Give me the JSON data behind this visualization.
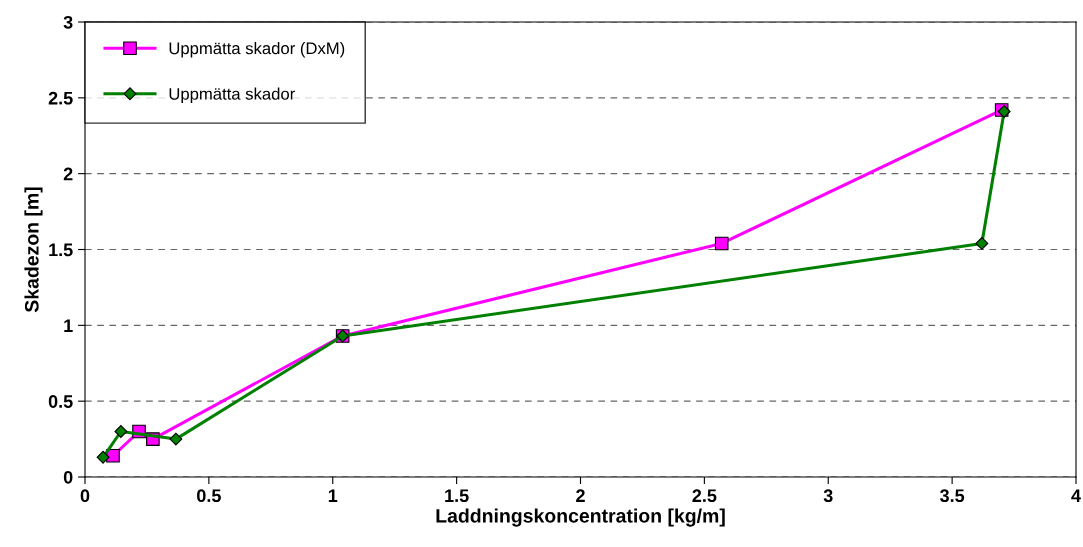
{
  "chart_data": {
    "type": "line",
    "xlabel": "Laddningskoncentration [kg/m]",
    "ylabel": "Skadezon [m]",
    "xlim": [
      0,
      4
    ],
    "xticks": [
      0,
      0.5,
      1,
      1.5,
      2,
      2.5,
      3,
      3.5,
      4
    ],
    "ylim": [
      0,
      3
    ],
    "yticks": [
      0,
      0.5,
      1,
      1.5,
      2,
      2.5,
      3
    ],
    "grid": "y",
    "legend": "top left",
    "line_style": "solid",
    "series": [
      {
        "name": "Uppmätta skador (DxM)",
        "color": "#ff00ff",
        "marker": "square",
        "x": [
          0.113,
          0.218,
          0.274,
          1.04,
          2.57,
          3.7
        ],
        "values": [
          0.14,
          0.3,
          0.25,
          0.93,
          1.54,
          2.42
        ]
      },
      {
        "name": "Uppmätta skador",
        "color": "#008000",
        "marker": "diamond",
        "x": [
          0.073,
          0.145,
          0.367,
          1.04,
          3.62,
          3.71
        ],
        "values": [
          0.13,
          0.3,
          0.25,
          0.93,
          1.54,
          2.41
        ]
      }
    ]
  }
}
